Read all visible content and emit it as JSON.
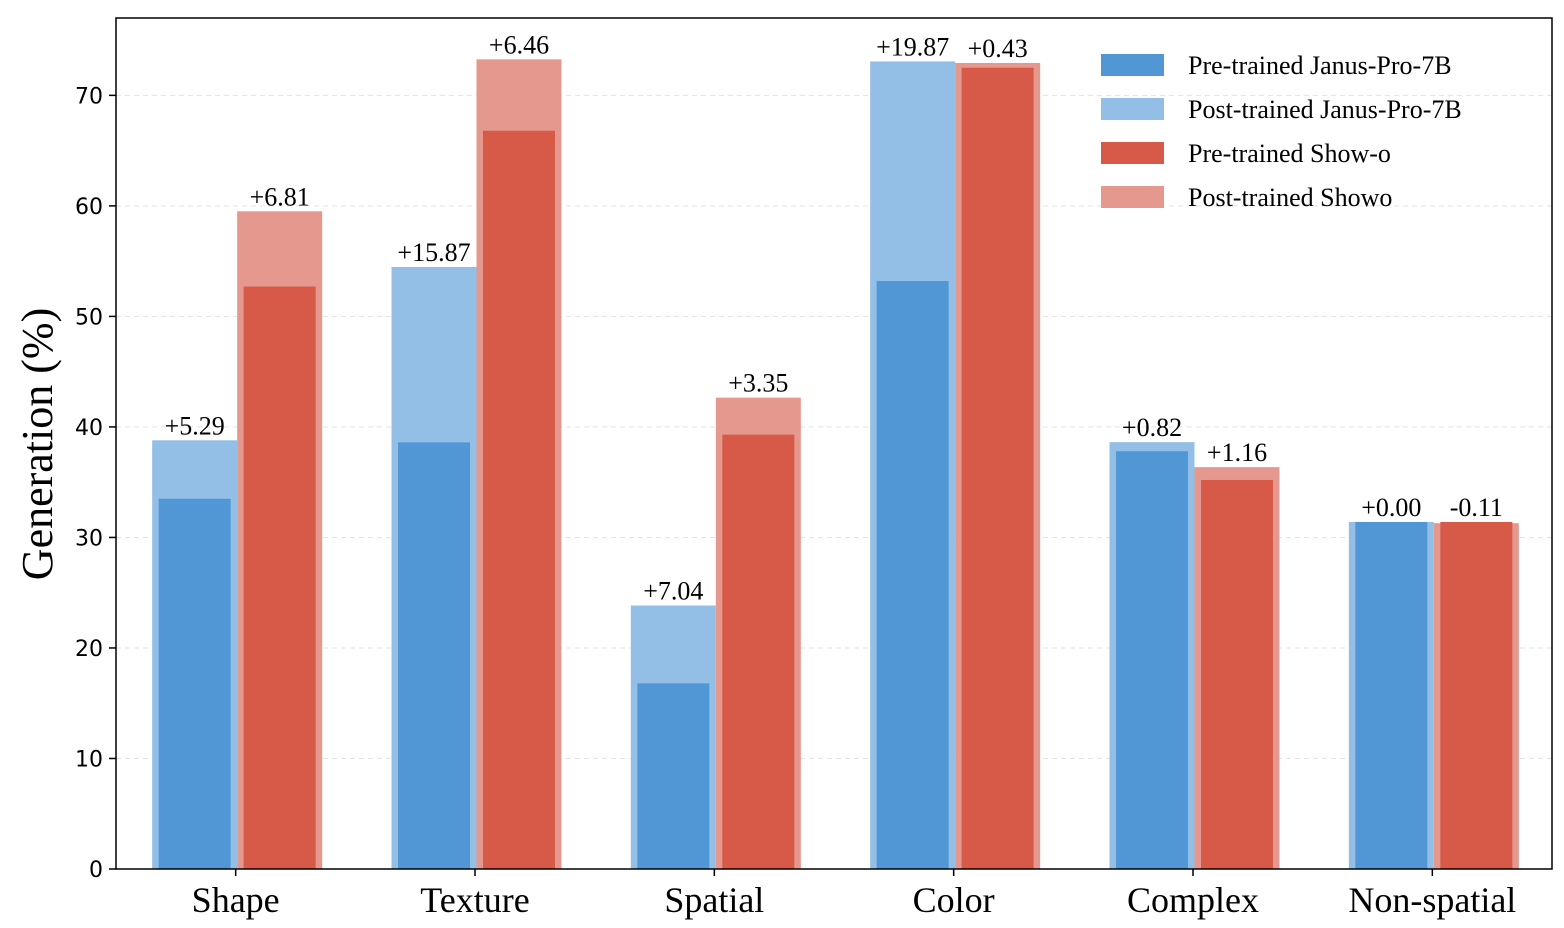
{
  "chart_data": {
    "type": "bar",
    "title": "",
    "xlabel": "",
    "ylabel": "Generation (%)",
    "ylim": [
      0,
      77
    ],
    "yticks": [
      0,
      10,
      20,
      30,
      40,
      50,
      60,
      70
    ],
    "grid": true,
    "legend_position": "top-right",
    "categories": [
      "Shape",
      "Texture",
      "Spatial",
      "Color",
      "Complex",
      "Non-spatial"
    ],
    "series": [
      {
        "name": "Pre-trained Janus-Pro-7B",
        "color": "#5196d5",
        "values": [
          33.5,
          38.6,
          16.8,
          53.2,
          37.8,
          31.4
        ]
      },
      {
        "name": "Post-trained Janus-Pro-7B",
        "color": "#93bfe7",
        "values": [
          38.79,
          54.47,
          23.84,
          73.07,
          38.62,
          31.4
        ]
      },
      {
        "name": "Pre-trained Show-o",
        "color": "#d75948",
        "values": [
          52.7,
          66.8,
          39.3,
          72.5,
          35.2,
          31.4
        ]
      },
      {
        "name": "Post-trained Showo",
        "color": "#e5988d",
        "values": [
          59.51,
          73.26,
          42.65,
          72.93,
          36.36,
          31.29
        ]
      }
    ],
    "delta_labels": {
      "janus": [
        "+5.29",
        "+15.87",
        "+7.04",
        "+19.87",
        "+0.82",
        "+0.00"
      ],
      "showo": [
        "+6.81",
        "+6.46",
        "+3.35",
        "+0.43",
        "+1.16",
        "-0.11"
      ]
    }
  }
}
